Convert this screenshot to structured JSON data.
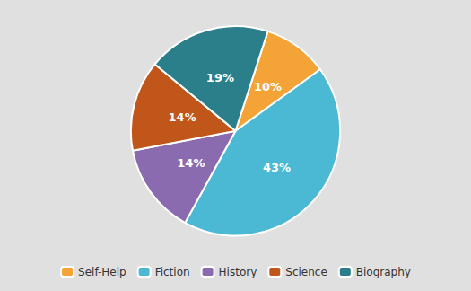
{
  "chart_data": {
    "type": "pie",
    "categories": [
      "Self-Help",
      "Fiction",
      "History",
      "Science",
      "Biography"
    ],
    "values": [
      10,
      43,
      14,
      14,
      19
    ],
    "value_labels": [
      "10%",
      "43%",
      "14%",
      "14%",
      "19%"
    ],
    "colors": [
      "#f4a436",
      "#4bb8d4",
      "#8b6baf",
      "#c0561a",
      "#2a7f8a"
    ],
    "data_labels": true,
    "legend": "bottom"
  }
}
